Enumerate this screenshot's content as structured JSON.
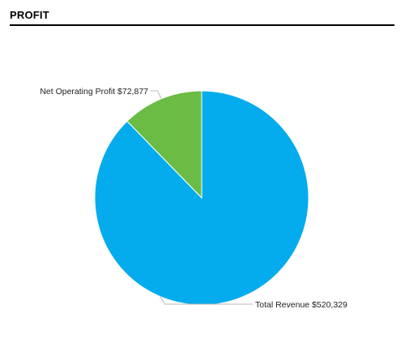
{
  "header": {
    "title": "PROFIT"
  },
  "colors": {
    "revenue": "#05aced",
    "profit": "#6abc45",
    "leader": "#b8b8b8"
  },
  "chart_data": {
    "type": "pie",
    "title": "",
    "slices": [
      {
        "label": "Total Revenue",
        "value": 520329,
        "display": "Total Revenue $520,329"
      },
      {
        "label": "Net Operating Profit",
        "value": 72877,
        "display": "Net Operating Profit $72,877"
      }
    ],
    "legend": "none"
  }
}
